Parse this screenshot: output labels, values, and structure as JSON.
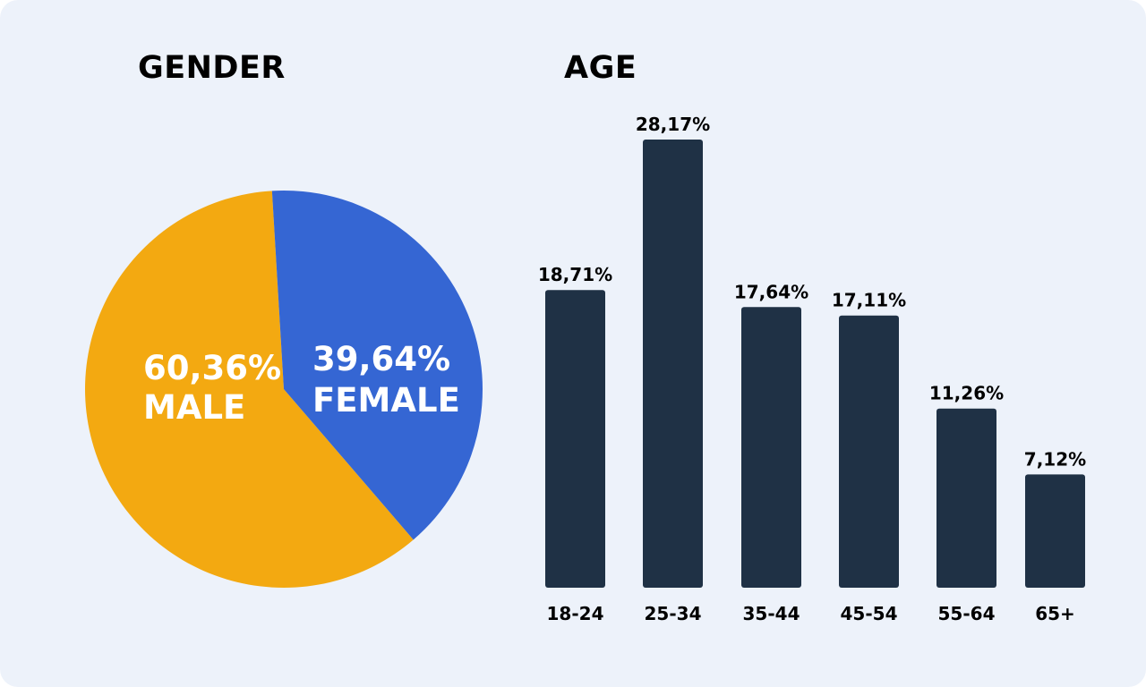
{
  "chart_data": [
    {
      "type": "pie",
      "title": "GENDER",
      "slices": [
        {
          "label": "MALE",
          "percent_label": "60,36%",
          "value": 60.36,
          "color": "#f3a911"
        },
        {
          "label": "FEMALE",
          "percent_label": "39,64%",
          "value": 39.64,
          "color": "#3566d3"
        }
      ]
    },
    {
      "type": "bar",
      "title": "AGE",
      "categories": [
        "18-24",
        "25-34",
        "35-44",
        "45-54",
        "55-64",
        "65+"
      ],
      "values": [
        18.71,
        28.17,
        17.64,
        17.11,
        11.26,
        7.12
      ],
      "value_labels": [
        "18,71%",
        "28,17%",
        "17,64%",
        "17,11%",
        "11,26%",
        "7,12%"
      ],
      "ylim": [
        0,
        30
      ],
      "bar_color": "#1f3145"
    }
  ],
  "colors": {
    "background": "#edf2fa",
    "text": "#000000",
    "pie_label": "#ffffff"
  }
}
